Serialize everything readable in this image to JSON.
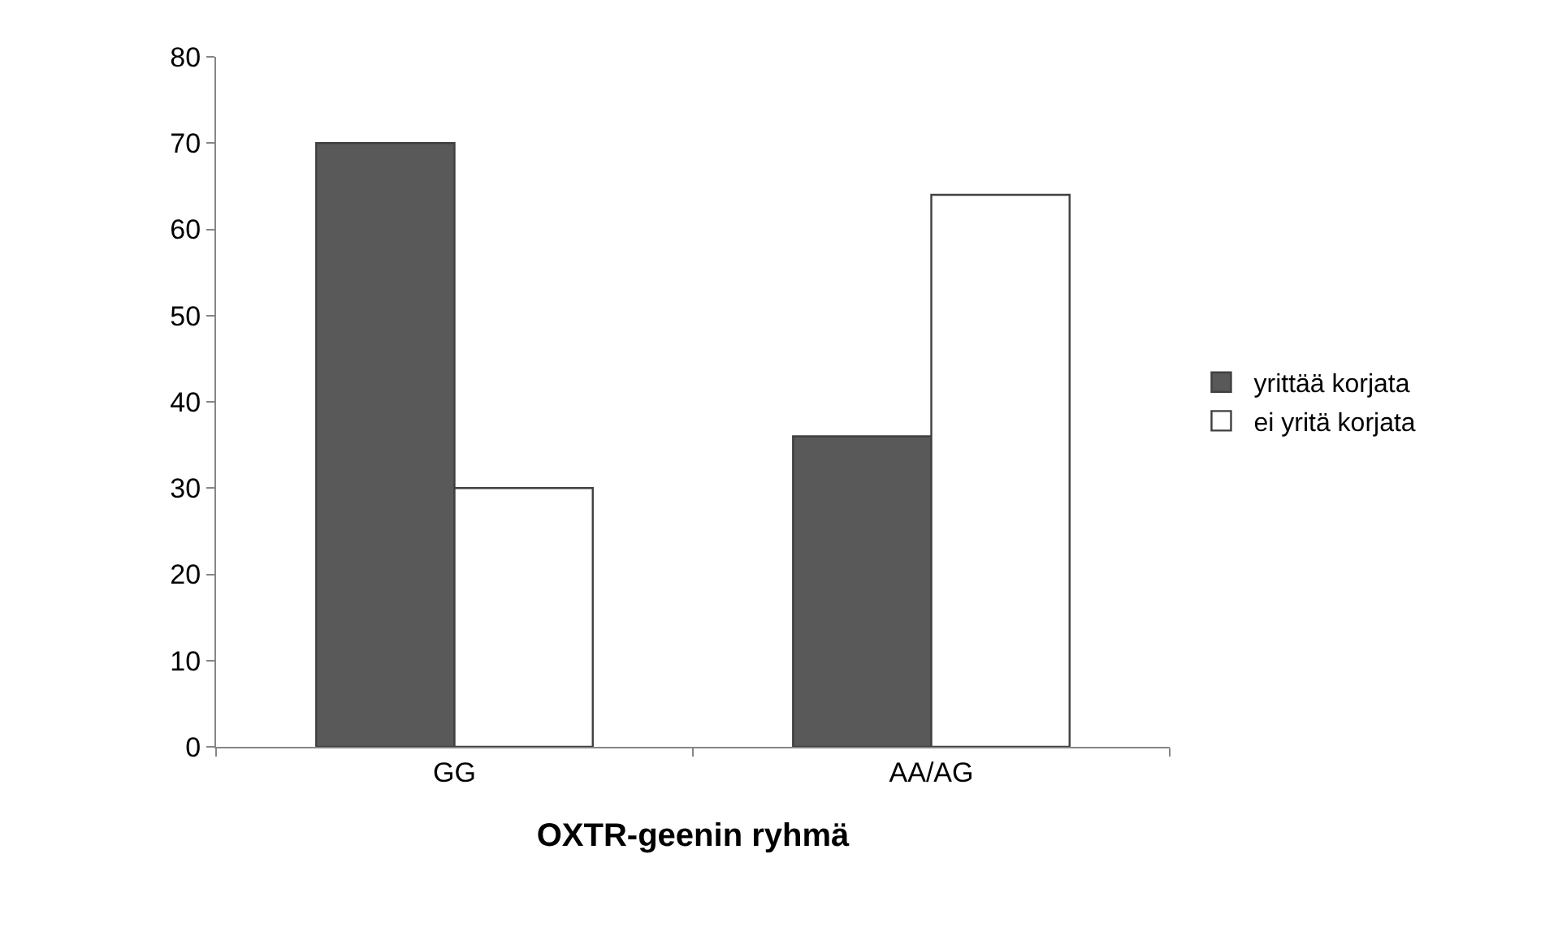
{
  "chart_data": {
    "type": "bar",
    "xlabel": "OXTR-geenin ryhmä",
    "categories": [
      "GG",
      "AA/AG"
    ],
    "series": [
      {
        "name": "yrittää korjata",
        "color": "#595959",
        "values": [
          70,
          36
        ]
      },
      {
        "name": "ei yritä korjata",
        "color": "#ffffff",
        "values": [
          30,
          64
        ]
      }
    ],
    "ylim": [
      0,
      80
    ],
    "yticks": [
      0,
      10,
      20,
      30,
      40,
      50,
      60,
      70,
      80
    ],
    "legend": "right"
  }
}
